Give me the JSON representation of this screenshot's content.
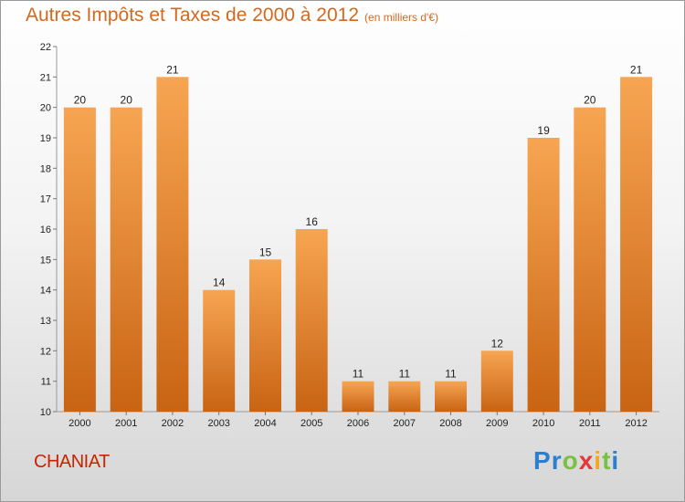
{
  "title": "Autres Impôts et Taxes de 2000 à 2012",
  "unit_label": "(en milliers d'€)",
  "commune": "CHANIAT",
  "logo": {
    "text": "Proxiti",
    "letters": [
      {
        "ch": "P",
        "color": "#2a7fcf"
      },
      {
        "ch": "r",
        "color": "#2a7fcf"
      },
      {
        "ch": "o",
        "color": "#7ac143"
      },
      {
        "ch": "x",
        "color": "#e53935"
      },
      {
        "ch": "i",
        "color": "#f5a623"
      },
      {
        "ch": "t",
        "color": "#7ac143"
      },
      {
        "ch": "i",
        "color": "#2a7fcf"
      }
    ]
  },
  "colors": {
    "bar_top": "#f7a552",
    "bar_bottom": "#c86414",
    "title": "#d2691e",
    "commune": "#cc2200"
  },
  "chart_data": {
    "type": "bar",
    "title": "Autres Impôts et Taxes de 2000 à 2012",
    "xlabel": "",
    "ylabel": "",
    "ylim": [
      10,
      22
    ],
    "yticks": [
      10,
      11,
      12,
      13,
      14,
      15,
      16,
      17,
      18,
      19,
      20,
      21,
      22
    ],
    "categories": [
      "2000",
      "2001",
      "2002",
      "2003",
      "2004",
      "2005",
      "2006",
      "2007",
      "2008",
      "2009",
      "2010",
      "2011",
      "2012"
    ],
    "values": [
      20,
      20,
      21,
      14,
      15,
      16,
      11,
      11,
      11,
      12,
      19,
      20,
      21
    ],
    "grid": false,
    "data_labels": true
  }
}
